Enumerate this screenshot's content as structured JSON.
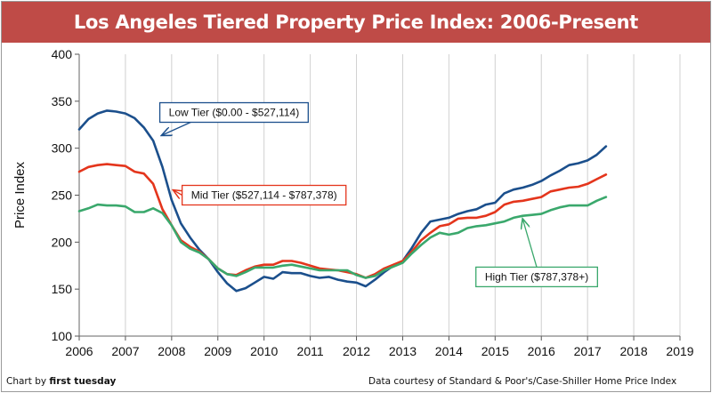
{
  "footer": {
    "credit_prefix": "Chart by",
    "credit_name": "first tuesday",
    "source": "Data courtesy of Standard & Poor's/Case-Shiller Home Price Index"
  },
  "chart_data": {
    "type": "line",
    "title": "Los Angeles Tiered Property Price Index: 2006-Present",
    "xlabel": "",
    "ylabel": "Price Index",
    "xlim": [
      2006,
      2019
    ],
    "ylim": [
      100,
      400
    ],
    "xticks": [
      2006,
      2007,
      2008,
      2009,
      2010,
      2011,
      2012,
      2013,
      2014,
      2015,
      2016,
      2017,
      2018,
      2019
    ],
    "yticks": [
      100,
      150,
      200,
      250,
      300,
      350,
      400
    ],
    "grid": "vertical",
    "series": [
      {
        "name": "Low Tier ($0.00 - $527,114)",
        "color": "#1b4f8c",
        "x": [
          2006,
          2006.2,
          2006.4,
          2006.6,
          2006.8,
          2007,
          2007.2,
          2007.4,
          2007.6,
          2007.8,
          2008,
          2008.2,
          2008.4,
          2008.6,
          2008.8,
          2009,
          2009.2,
          2009.4,
          2009.6,
          2009.8,
          2010,
          2010.2,
          2010.4,
          2010.6,
          2010.8,
          2011,
          2011.2,
          2011.4,
          2011.6,
          2011.8,
          2012,
          2012.2,
          2012.4,
          2012.6,
          2012.8,
          2013,
          2013.2,
          2013.4,
          2013.6,
          2013.8,
          2014,
          2014.2,
          2014.4,
          2014.6,
          2014.8,
          2015,
          2015.2,
          2015.4,
          2015.6,
          2015.8,
          2016,
          2016.2,
          2016.4,
          2016.6,
          2016.8,
          2017,
          2017.2,
          2017.4
        ],
        "values": [
          320,
          331,
          337,
          340,
          339,
          337,
          332,
          322,
          308,
          280,
          245,
          220,
          205,
          192,
          182,
          168,
          156,
          148,
          151,
          157,
          163,
          161,
          168,
          167,
          167,
          164,
          162,
          163,
          160,
          158,
          157,
          153,
          160,
          168,
          175,
          180,
          194,
          210,
          222,
          224,
          226,
          230,
          233,
          235,
          240,
          242,
          252,
          256,
          258,
          261,
          265,
          271,
          276,
          282,
          284,
          287,
          293,
          302
        ]
      },
      {
        "name": "Mid Tier ($527,114 - $787,378)",
        "color": "#e4351c",
        "x": [
          2006,
          2006.2,
          2006.4,
          2006.6,
          2006.8,
          2007,
          2007.2,
          2007.4,
          2007.6,
          2007.8,
          2008,
          2008.2,
          2008.4,
          2008.6,
          2008.8,
          2009,
          2009.2,
          2009.4,
          2009.6,
          2009.8,
          2010,
          2010.2,
          2010.4,
          2010.6,
          2010.8,
          2011,
          2011.2,
          2011.4,
          2011.6,
          2011.8,
          2012,
          2012.2,
          2012.4,
          2012.6,
          2012.8,
          2013,
          2013.2,
          2013.4,
          2013.6,
          2013.8,
          2014,
          2014.2,
          2014.4,
          2014.6,
          2014.8,
          2015,
          2015.2,
          2015.4,
          2015.6,
          2015.8,
          2016,
          2016.2,
          2016.4,
          2016.6,
          2016.8,
          2017,
          2017.2,
          2017.4
        ],
        "values": [
          275,
          280,
          282,
          283,
          282,
          281,
          275,
          273,
          262,
          235,
          218,
          202,
          195,
          190,
          182,
          172,
          166,
          165,
          170,
          174,
          176,
          176,
          180,
          180,
          178,
          175,
          172,
          171,
          170,
          168,
          166,
          162,
          166,
          172,
          176,
          180,
          190,
          202,
          210,
          217,
          219,
          225,
          226,
          226,
          228,
          232,
          240,
          243,
          244,
          246,
          248,
          254,
          256,
          258,
          259,
          262,
          267,
          272
        ]
      },
      {
        "name": "High Tier ($787,378+)",
        "color": "#3aa86c",
        "x": [
          2006,
          2006.2,
          2006.4,
          2006.6,
          2006.8,
          2007,
          2007.2,
          2007.4,
          2007.6,
          2007.8,
          2008,
          2008.2,
          2008.4,
          2008.6,
          2008.8,
          2009,
          2009.2,
          2009.4,
          2009.6,
          2009.8,
          2010,
          2010.2,
          2010.4,
          2010.6,
          2010.8,
          2011,
          2011.2,
          2011.4,
          2011.6,
          2011.8,
          2012,
          2012.2,
          2012.4,
          2012.6,
          2012.8,
          2013,
          2013.2,
          2013.4,
          2013.6,
          2013.8,
          2014,
          2014.2,
          2014.4,
          2014.6,
          2014.8,
          2015,
          2015.2,
          2015.4,
          2015.6,
          2015.8,
          2016,
          2016.2,
          2016.4,
          2016.6,
          2016.8,
          2017,
          2017.2,
          2017.4
        ],
        "values": [
          233,
          236,
          240,
          239,
          239,
          238,
          232,
          232,
          236,
          231,
          218,
          200,
          193,
          189,
          182,
          172,
          166,
          164,
          168,
          173,
          173,
          173,
          175,
          176,
          174,
          172,
          170,
          170,
          170,
          170,
          165,
          162,
          164,
          170,
          174,
          178,
          188,
          197,
          205,
          210,
          208,
          210,
          215,
          217,
          218,
          220,
          222,
          226,
          228,
          229,
          230,
          234,
          237,
          239,
          239,
          239,
          244,
          248
        ]
      }
    ],
    "annotations": [
      {
        "text": "Low Tier ($0.00 - $527,114)",
        "series": 0,
        "point": [
          2007.8,
          314
        ],
        "box_anchor": [
          2009.35,
          338
        ]
      },
      {
        "text": "Mid Tier ($527,114 - $787,378)",
        "series": 1,
        "point": [
          2008.05,
          255
        ],
        "box_anchor": [
          2010.0,
          250
        ]
      },
      {
        "text": "High Tier ($787,378+)",
        "series": 2,
        "point": [
          2015.6,
          224
        ],
        "box_anchor": [
          2015.9,
          163
        ]
      }
    ]
  }
}
